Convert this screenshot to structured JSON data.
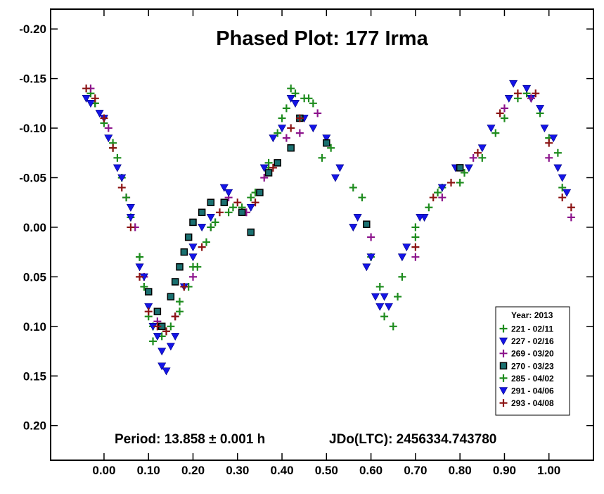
{
  "chart_data": {
    "type": "scatter",
    "title": "Phased Plot: 177 Irma",
    "xlabel": "",
    "ylabel": "",
    "xlim": [
      -0.12,
      1.1
    ],
    "ylim": [
      0.235,
      -0.22
    ],
    "y_inverted": true,
    "x_ticks": [
      0.0,
      0.1,
      0.2,
      0.3,
      0.4,
      0.5,
      0.6,
      0.7,
      0.8,
      0.9,
      1.0
    ],
    "x_tick_labels": [
      "0.00",
      "0.10",
      "0.20",
      "0.30",
      "0.40",
      "0.50",
      "0.60",
      "0.70",
      "0.80",
      "0.90",
      "1.00"
    ],
    "y_ticks": [
      -0.2,
      -0.15,
      -0.1,
      -0.05,
      0.0,
      0.05,
      0.1,
      0.15,
      0.2
    ],
    "y_tick_labels": [
      "-0.20",
      "-0.15",
      "-0.10",
      "-0.05",
      "0.00",
      "0.05",
      "0.10",
      "0.15",
      "0.20"
    ],
    "grid": false,
    "legend_placement": "bottom-right",
    "legend_title": "Year: 2013",
    "period_text": "Period: 13.858 ± 0.001 h",
    "epoch_text": "JDo(LTC): 2456334.743780",
    "series": [
      {
        "name": "221 - 02/11",
        "marker": "plus",
        "color": "#1e8c1e",
        "points": [
          [
            -0.03,
            -0.135
          ],
          [
            -0.02,
            -0.125
          ],
          [
            0.0,
            -0.105
          ],
          [
            0.02,
            -0.085
          ],
          [
            0.03,
            -0.07
          ],
          [
            0.04,
            -0.05
          ],
          [
            0.06,
            -0.01
          ],
          [
            0.08,
            0.03
          ],
          [
            0.09,
            0.06
          ],
          [
            0.1,
            0.09
          ],
          [
            0.11,
            0.115
          ],
          [
            0.13,
            0.11
          ],
          [
            0.15,
            0.1
          ],
          [
            0.17,
            0.085
          ],
          [
            0.19,
            0.06
          ],
          [
            0.21,
            0.04
          ],
          [
            0.23,
            0.015
          ],
          [
            0.25,
            -0.005
          ],
          [
            0.28,
            -0.015
          ],
          [
            0.31,
            -0.02
          ],
          [
            0.34,
            -0.035
          ],
          [
            0.37,
            -0.06
          ],
          [
            0.39,
            -0.095
          ],
          [
            0.41,
            -0.12
          ],
          [
            0.43,
            -0.135
          ],
          [
            0.45,
            -0.13
          ],
          [
            0.47,
            -0.125
          ],
          [
            0.49,
            -0.07
          ],
          [
            0.56,
            -0.04
          ],
          [
            0.6,
            0.03
          ],
          [
            0.63,
            0.09
          ],
          [
            0.65,
            0.1
          ],
          [
            0.67,
            0.05
          ],
          [
            0.7,
            0.0
          ],
          [
            0.73,
            -0.02
          ],
          [
            0.76,
            -0.04
          ],
          [
            0.8,
            -0.045
          ],
          [
            0.85,
            -0.07
          ],
          [
            0.9,
            -0.11
          ],
          [
            0.95,
            -0.135
          ],
          [
            1.0,
            -0.09
          ],
          [
            1.03,
            -0.04
          ]
        ]
      },
      {
        "name": "227 - 02/16",
        "marker": "triangle",
        "color": "#1414e6",
        "points": [
          [
            -0.04,
            -0.13
          ],
          [
            -0.01,
            -0.115
          ],
          [
            0.01,
            -0.09
          ],
          [
            0.04,
            -0.05
          ],
          [
            0.06,
            -0.01
          ],
          [
            0.08,
            0.04
          ],
          [
            0.1,
            0.08
          ],
          [
            0.12,
            0.11
          ],
          [
            0.13,
            0.14
          ],
          [
            0.15,
            0.12
          ],
          [
            0.18,
            0.06
          ],
          [
            0.2,
            0.02
          ],
          [
            0.22,
            0.0
          ],
          [
            0.27,
            -0.04
          ],
          [
            0.38,
            -0.09
          ],
          [
            0.42,
            -0.13
          ],
          [
            0.45,
            -0.11
          ],
          [
            0.5,
            -0.09
          ],
          [
            0.53,
            -0.06
          ],
          [
            0.57,
            -0.01
          ],
          [
            0.6,
            0.03
          ],
          [
            0.62,
            0.08
          ],
          [
            0.64,
            0.08
          ],
          [
            0.68,
            0.02
          ],
          [
            0.72,
            -0.01
          ],
          [
            0.79,
            -0.06
          ],
          [
            0.85,
            -0.08
          ],
          [
            0.92,
            -0.145
          ],
          [
            0.96,
            -0.13
          ],
          [
            0.99,
            -0.1
          ],
          [
            1.02,
            -0.06
          ],
          [
            1.04,
            -0.035
          ]
        ]
      },
      {
        "name": "269 - 03/20",
        "marker": "plus",
        "color": "#8c148c",
        "points": [
          [
            -0.03,
            -0.14
          ],
          [
            0.01,
            -0.1
          ],
          [
            0.05,
            -0.03
          ],
          [
            0.07,
            0.0
          ],
          [
            0.09,
            0.05
          ],
          [
            0.12,
            0.095
          ],
          [
            0.16,
            0.09
          ],
          [
            0.2,
            0.05
          ],
          [
            0.24,
            0.0
          ],
          [
            0.28,
            -0.03
          ],
          [
            0.32,
            -0.015
          ],
          [
            0.36,
            -0.05
          ],
          [
            0.41,
            -0.09
          ],
          [
            0.44,
            -0.095
          ],
          [
            0.48,
            -0.115
          ],
          [
            0.6,
            0.01
          ],
          [
            0.7,
            0.03
          ],
          [
            0.76,
            -0.03
          ],
          [
            0.83,
            -0.07
          ],
          [
            0.9,
            -0.12
          ],
          [
            0.96,
            -0.13
          ],
          [
            1.0,
            -0.07
          ],
          [
            1.05,
            -0.01
          ]
        ]
      },
      {
        "name": "270 - 03/23",
        "marker": "square",
        "color": "#1a7070",
        "points": [
          [
            0.1,
            0.065
          ],
          [
            0.12,
            0.085
          ],
          [
            0.13,
            0.1
          ],
          [
            0.15,
            0.07
          ],
          [
            0.16,
            0.055
          ],
          [
            0.17,
            0.04
          ],
          [
            0.18,
            0.025
          ],
          [
            0.19,
            0.01
          ],
          [
            0.2,
            -0.005
          ],
          [
            0.22,
            -0.015
          ],
          [
            0.24,
            -0.025
          ],
          [
            0.27,
            -0.025
          ],
          [
            0.31,
            -0.015
          ],
          [
            0.33,
            0.005
          ],
          [
            0.35,
            -0.035
          ],
          [
            0.37,
            -0.055
          ],
          [
            0.39,
            -0.065
          ],
          [
            0.42,
            -0.08
          ],
          [
            0.44,
            -0.11
          ],
          [
            0.5,
            -0.085
          ],
          [
            0.59,
            -0.003
          ],
          [
            0.8,
            -0.06
          ]
        ]
      },
      {
        "name": "285 - 04/02",
        "marker": "plus",
        "color": "#1e8c1e",
        "points": [
          [
            -0.02,
            -0.125
          ],
          [
            0.02,
            -0.08
          ],
          [
            0.05,
            -0.03
          ],
          [
            0.08,
            0.03
          ],
          [
            0.11,
            0.1
          ],
          [
            0.14,
            0.105
          ],
          [
            0.17,
            0.075
          ],
          [
            0.2,
            0.04
          ],
          [
            0.24,
            0.0
          ],
          [
            0.29,
            -0.02
          ],
          [
            0.33,
            -0.03
          ],
          [
            0.37,
            -0.065
          ],
          [
            0.4,
            -0.11
          ],
          [
            0.42,
            -0.14
          ],
          [
            0.46,
            -0.13
          ],
          [
            0.51,
            -0.08
          ],
          [
            0.58,
            -0.03
          ],
          [
            0.62,
            0.06
          ],
          [
            0.66,
            0.07
          ],
          [
            0.7,
            0.01
          ],
          [
            0.75,
            -0.035
          ],
          [
            0.81,
            -0.055
          ],
          [
            0.88,
            -0.095
          ],
          [
            0.93,
            -0.13
          ],
          [
            0.98,
            -0.115
          ],
          [
            1.02,
            -0.075
          ]
        ]
      },
      {
        "name": "291 - 04/06",
        "marker": "triangle",
        "color": "#1414e6",
        "points": [
          [
            -0.03,
            -0.125
          ],
          [
            0.0,
            -0.11
          ],
          [
            0.03,
            -0.06
          ],
          [
            0.06,
            -0.02
          ],
          [
            0.09,
            0.05
          ],
          [
            0.11,
            0.1
          ],
          [
            0.13,
            0.125
          ],
          [
            0.14,
            0.145
          ],
          [
            0.16,
            0.11
          ],
          [
            0.2,
            0.03
          ],
          [
            0.24,
            -0.01
          ],
          [
            0.28,
            -0.035
          ],
          [
            0.33,
            -0.02
          ],
          [
            0.36,
            -0.06
          ],
          [
            0.4,
            -0.1
          ],
          [
            0.43,
            -0.125
          ],
          [
            0.47,
            -0.1
          ],
          [
            0.52,
            -0.05
          ],
          [
            0.56,
            0.0
          ],
          [
            0.59,
            0.04
          ],
          [
            0.61,
            0.07
          ],
          [
            0.63,
            0.07
          ],
          [
            0.67,
            0.03
          ],
          [
            0.71,
            -0.01
          ],
          [
            0.76,
            -0.04
          ],
          [
            0.82,
            -0.06
          ],
          [
            0.87,
            -0.1
          ],
          [
            0.91,
            -0.13
          ],
          [
            0.95,
            -0.14
          ],
          [
            0.98,
            -0.12
          ],
          [
            1.01,
            -0.09
          ],
          [
            1.03,
            -0.05
          ]
        ]
      },
      {
        "name": "293 - 04/08",
        "marker": "plus",
        "color": "#8c1414",
        "points": [
          [
            -0.04,
            -0.14
          ],
          [
            -0.02,
            -0.13
          ],
          [
            0.0,
            -0.11
          ],
          [
            0.02,
            -0.08
          ],
          [
            0.04,
            -0.04
          ],
          [
            0.06,
            0.0
          ],
          [
            0.08,
            0.05
          ],
          [
            0.1,
            0.085
          ],
          [
            0.12,
            0.1
          ],
          [
            0.14,
            0.105
          ],
          [
            0.16,
            0.09
          ],
          [
            0.18,
            0.06
          ],
          [
            0.22,
            0.02
          ],
          [
            0.26,
            -0.015
          ],
          [
            0.3,
            -0.025
          ],
          [
            0.34,
            -0.025
          ],
          [
            0.38,
            -0.06
          ],
          [
            0.42,
            -0.1
          ],
          [
            0.44,
            -0.11
          ],
          [
            0.7,
            0.02
          ],
          [
            0.74,
            -0.03
          ],
          [
            0.78,
            -0.045
          ],
          [
            0.84,
            -0.075
          ],
          [
            0.89,
            -0.115
          ],
          [
            0.93,
            -0.135
          ],
          [
            0.97,
            -0.135
          ],
          [
            1.0,
            -0.085
          ],
          [
            1.03,
            -0.03
          ],
          [
            1.05,
            -0.02
          ]
        ]
      }
    ]
  }
}
